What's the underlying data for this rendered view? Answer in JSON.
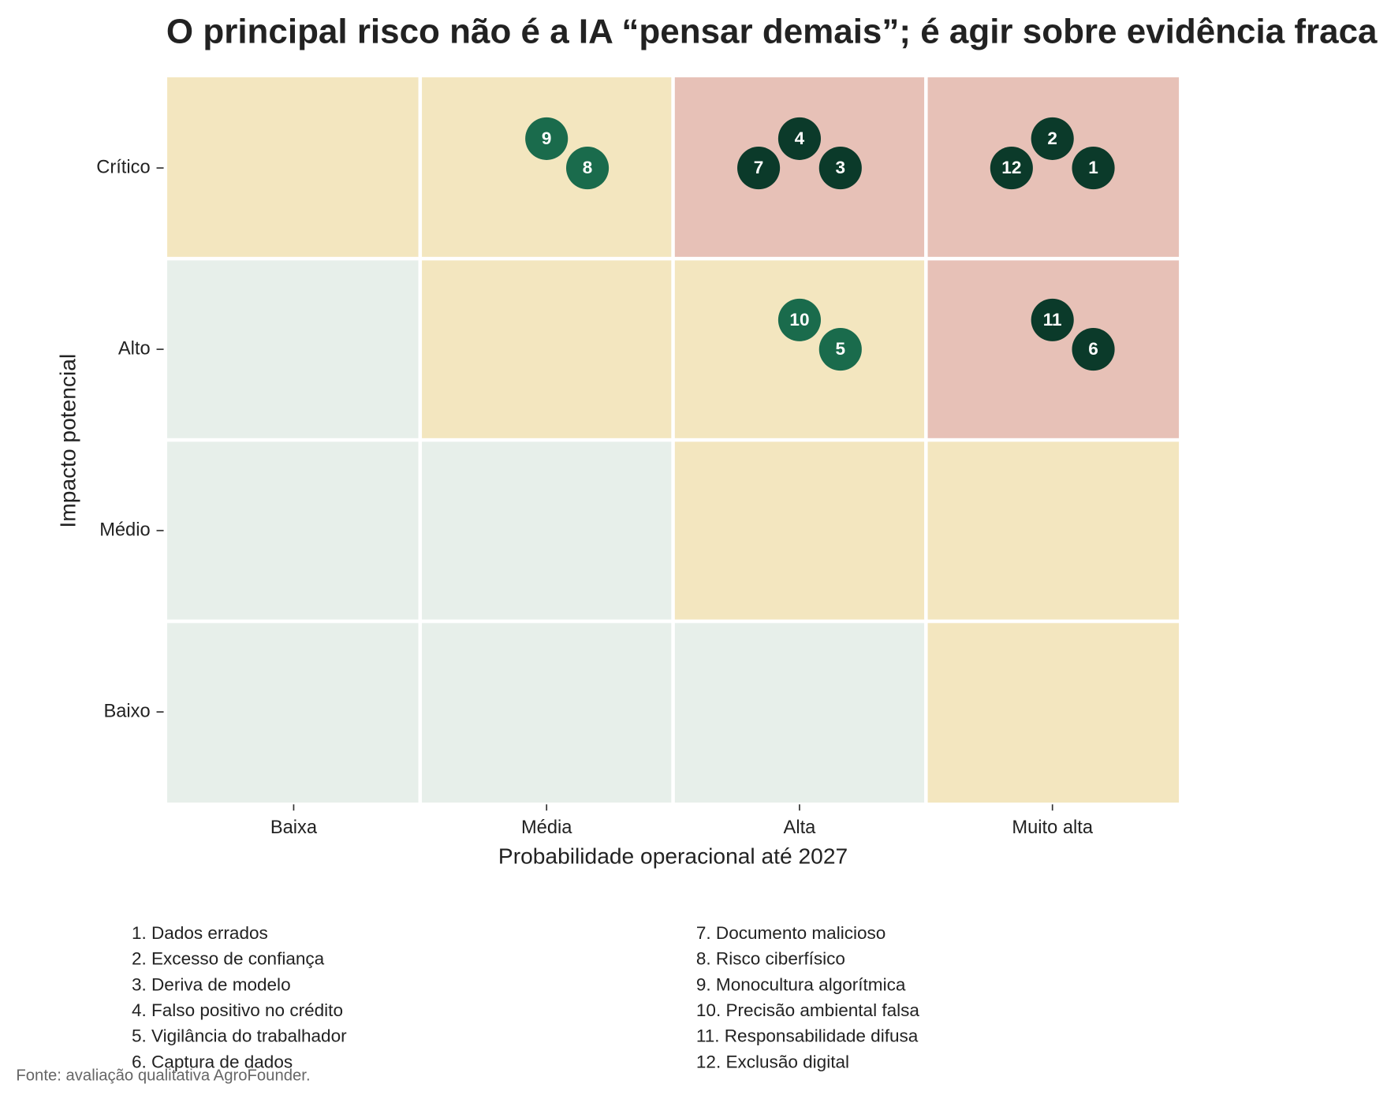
{
  "chart_data": {
    "type": "risk-matrix",
    "title": "O principal risco não é a IA “pensar demais”; é agir sobre evidência fraca",
    "x_label": "Probabilidade operacional até 2027",
    "y_label": "Impacto potencial",
    "x_categories": [
      "Baixa",
      "Média",
      "Alta",
      "Muito alta"
    ],
    "y_categories": [
      "Crítico",
      "Alto",
      "Médio",
      "Baixo"
    ],
    "cell_colors": [
      [
        "#f3e6bf",
        "#f3e6bf",
        "#e7c1b7",
        "#e7c1b7"
      ],
      [
        "#e7efea",
        "#f3e6bf",
        "#f3e6bf",
        "#e7c1b7"
      ],
      [
        "#e7efea",
        "#e7efea",
        "#f3e6bf",
        "#f3e6bf"
      ],
      [
        "#e7efea",
        "#e7efea",
        "#e7efea",
        "#f3e6bf"
      ]
    ],
    "risks": [
      {
        "id": 1,
        "x": "Muito alta",
        "y": "Crítico",
        "color": "#0b3a2a"
      },
      {
        "id": 2,
        "x": "Muito alta",
        "y": "Crítico",
        "color": "#0b3a2a"
      },
      {
        "id": 3,
        "x": "Alta",
        "y": "Crítico",
        "color": "#0b3a2a"
      },
      {
        "id": 4,
        "x": "Alta",
        "y": "Crítico",
        "color": "#0b3a2a"
      },
      {
        "id": 5,
        "x": "Alta",
        "y": "Alto",
        "color": "#1a6b4c"
      },
      {
        "id": 6,
        "x": "Muito alta",
        "y": "Alto",
        "color": "#0b3a2a"
      },
      {
        "id": 7,
        "x": "Alta",
        "y": "Crítico",
        "color": "#0b3a2a"
      },
      {
        "id": 8,
        "x": "Média",
        "y": "Crítico",
        "color": "#1a6b4c"
      },
      {
        "id": 9,
        "x": "Média",
        "y": "Crítico",
        "color": "#1a6b4c"
      },
      {
        "id": 10,
        "x": "Alta",
        "y": "Alto",
        "color": "#1a6b4c"
      },
      {
        "id": 11,
        "x": "Muito alta",
        "y": "Alto",
        "color": "#0b3a2a"
      },
      {
        "id": 12,
        "x": "Muito alta",
        "y": "Crítico",
        "color": "#0b3a2a"
      }
    ],
    "legend": [
      "1. Dados errados",
      "2. Excesso de confiança",
      "3. Deriva de modelo",
      "4. Falso positivo no crédito",
      "5. Vigilância do trabalhador",
      "6. Captura de dados",
      "7. Documento malicioso",
      "8. Risco ciberfísico",
      "9. Monocultura algorítmica",
      "10. Precisão ambiental falsa",
      "11. Responsabilidade difusa",
      "12. Exclusão digital"
    ],
    "source": "Fonte: avaliação qualitativa AgroFounder."
  }
}
